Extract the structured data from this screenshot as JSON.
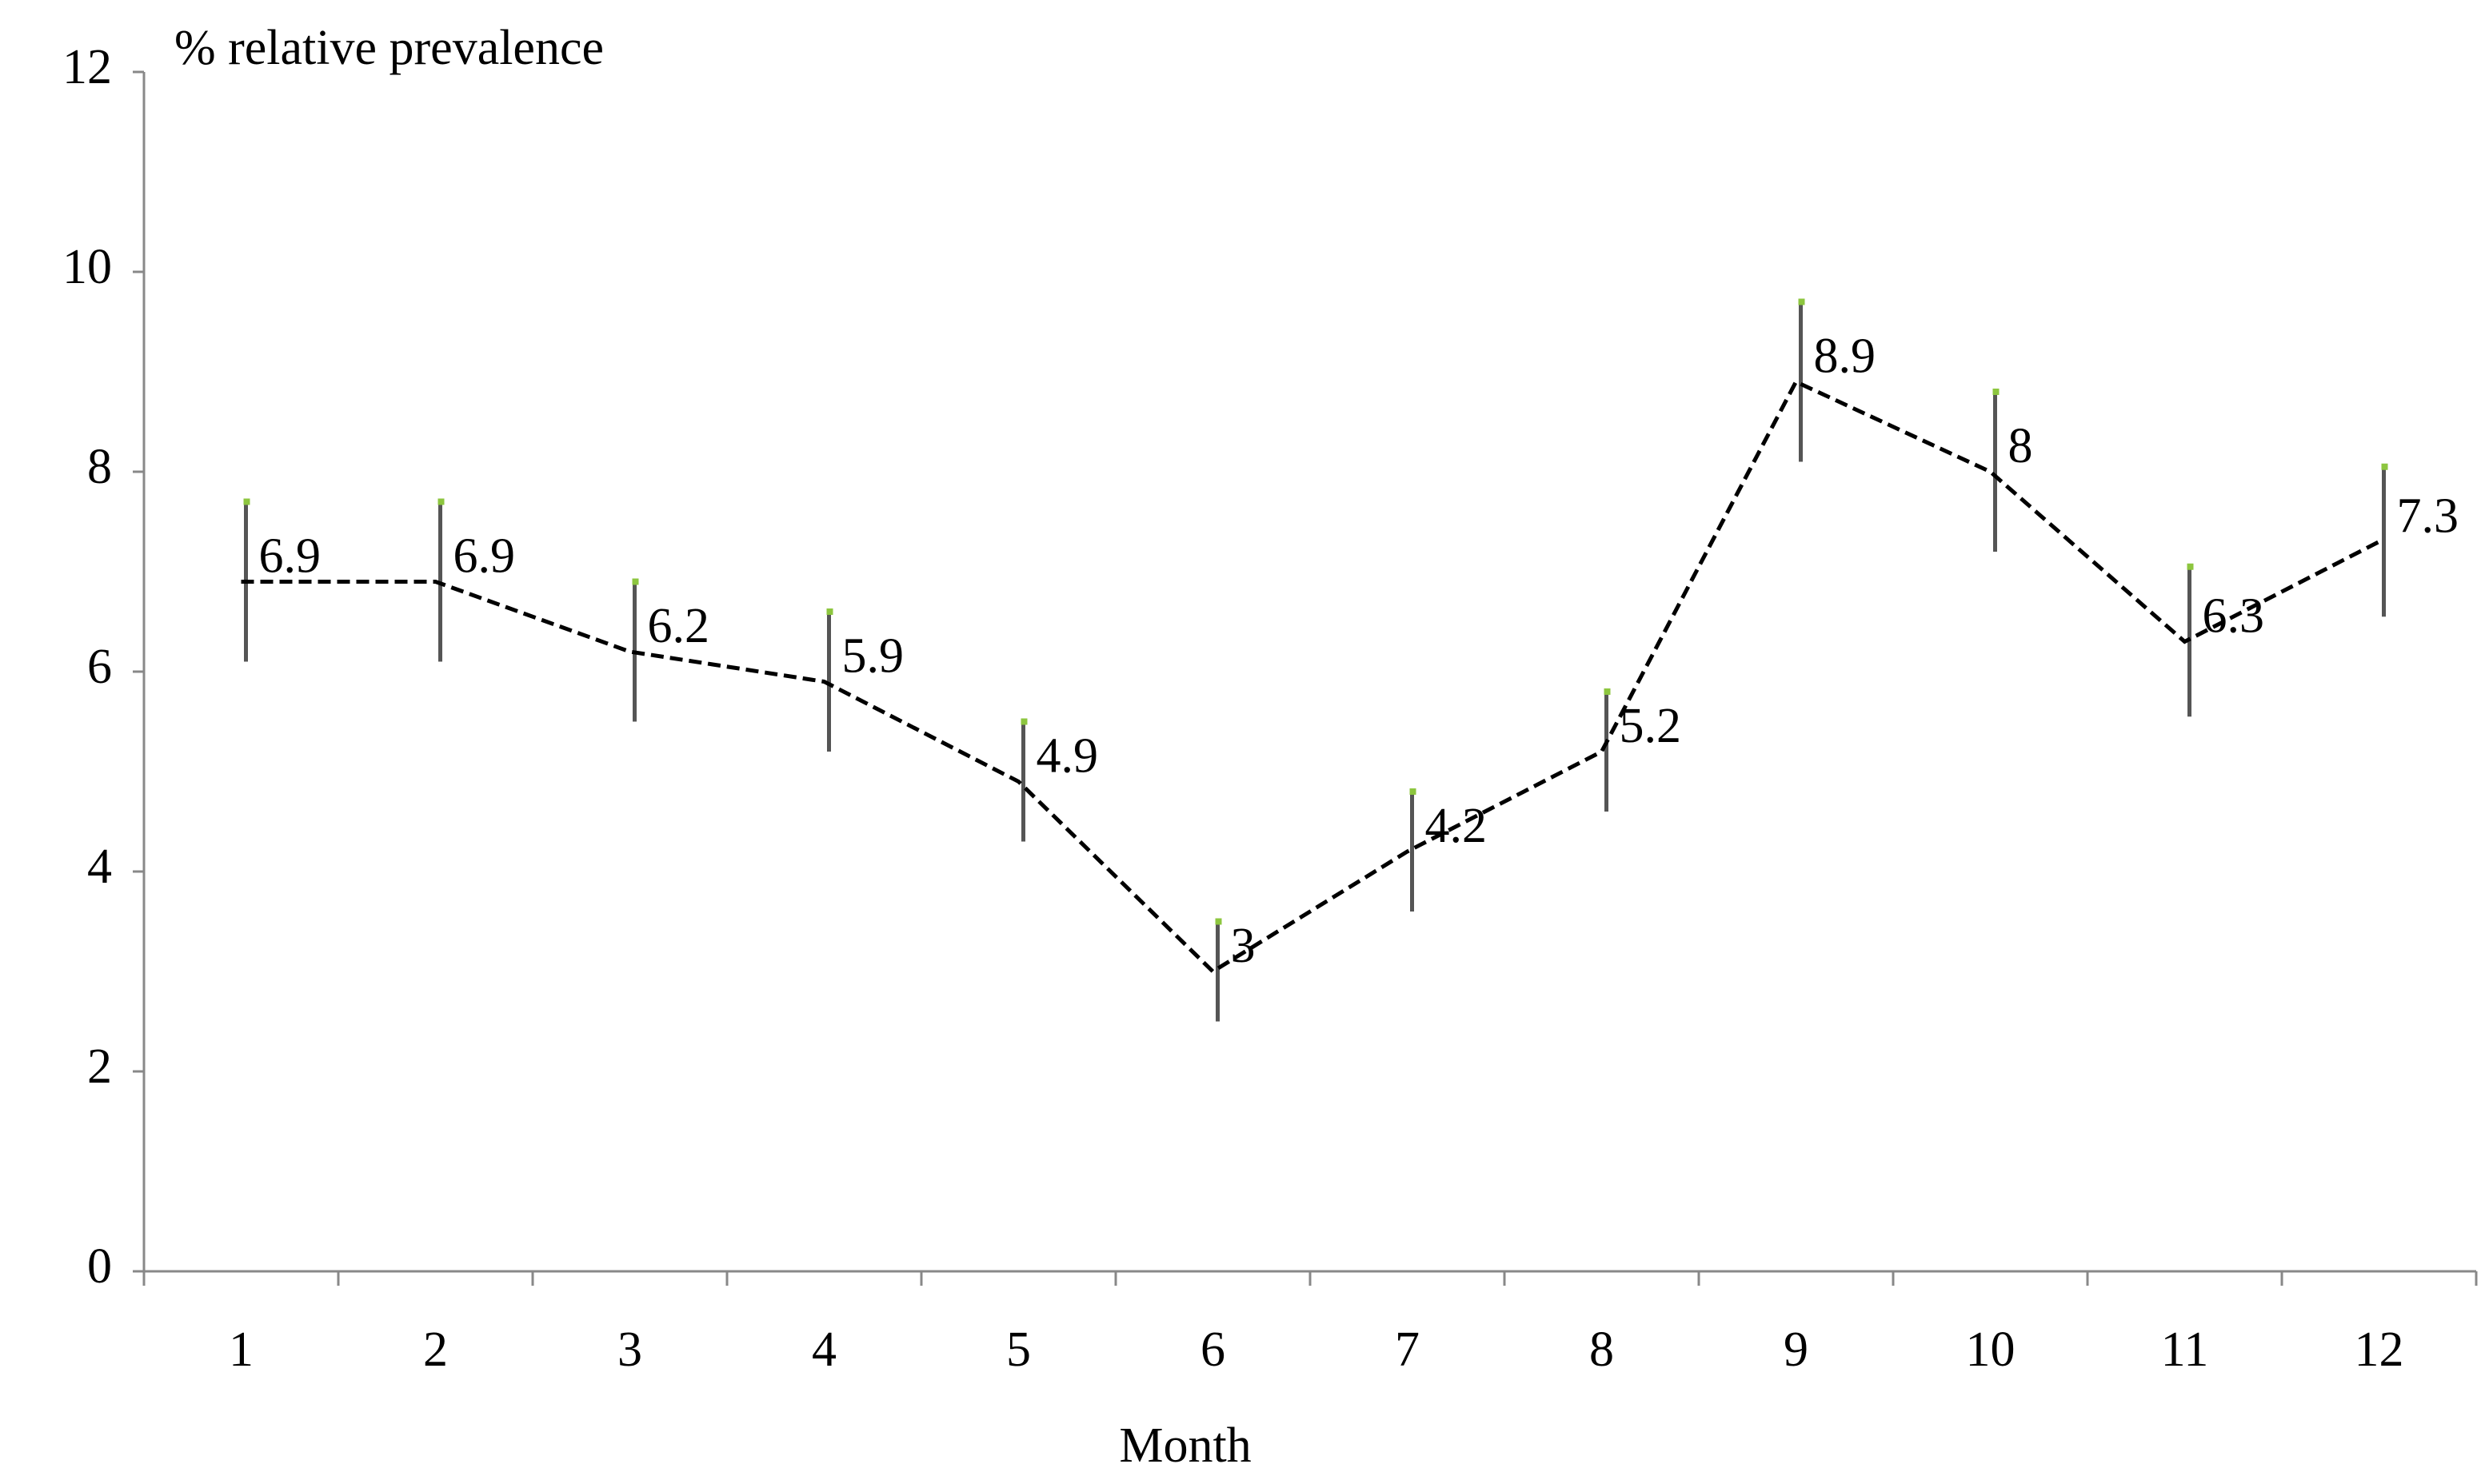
{
  "chart_data": {
    "type": "line",
    "y_label": "% relative prevalence",
    "x_label": "Month",
    "categories": [
      "1",
      "2",
      "3",
      "4",
      "5",
      "6",
      "7",
      "8",
      "9",
      "10",
      "11",
      "12"
    ],
    "values": [
      6.9,
      6.9,
      6.2,
      5.9,
      4.9,
      3,
      4.2,
      5.2,
      8.9,
      8,
      6.3,
      7.3
    ],
    "errors": [
      0.8,
      0.8,
      0.7,
      0.7,
      0.6,
      0.5,
      0.6,
      0.6,
      0.8,
      0.8,
      0.75,
      0.75
    ],
    "color": "#000000",
    "error_color": "#555555",
    "ylim": [
      0,
      12
    ],
    "yticks": [
      0,
      2,
      4,
      6,
      8,
      10,
      12
    ]
  }
}
